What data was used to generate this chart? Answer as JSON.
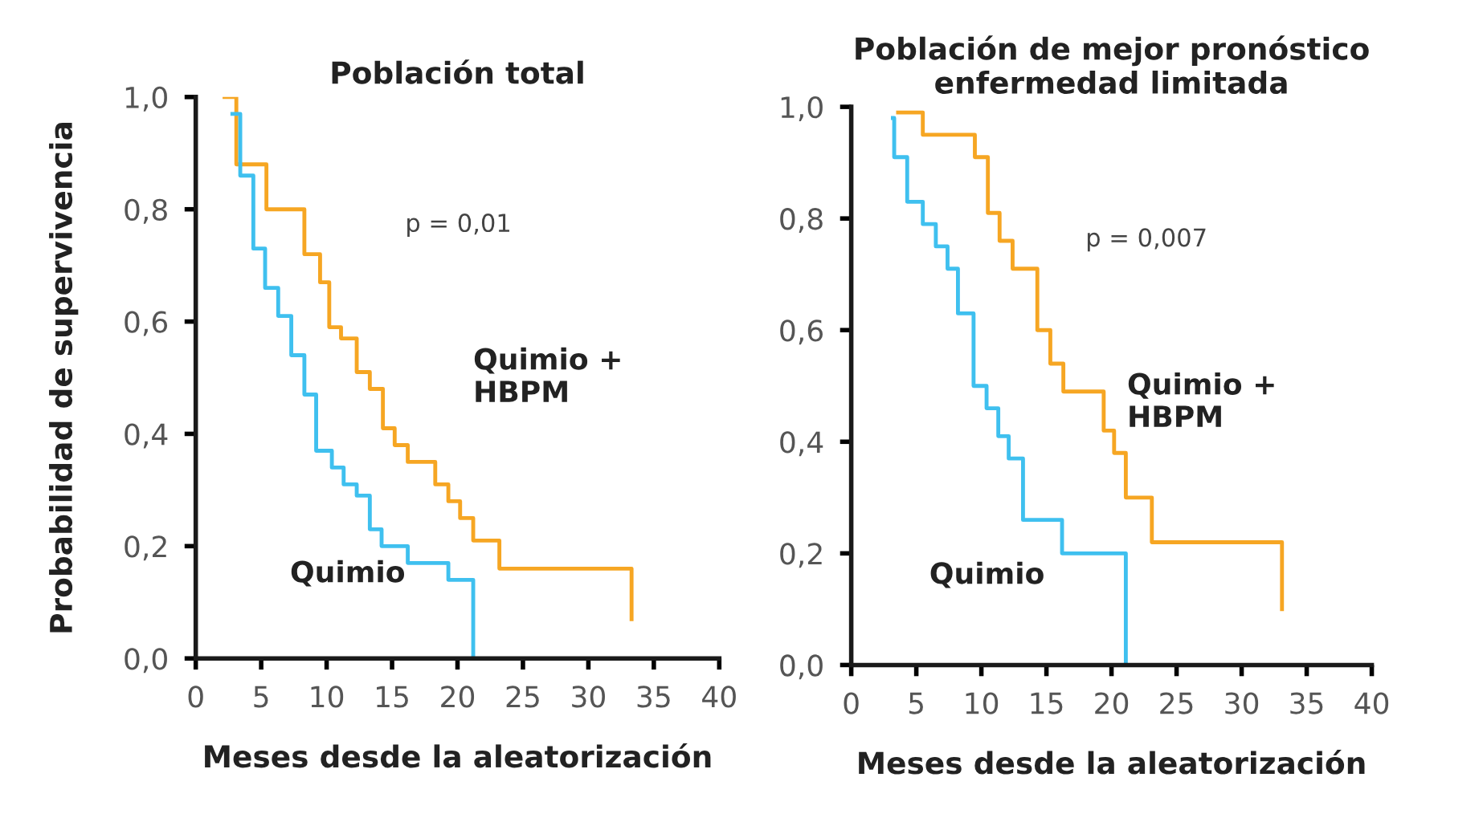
{
  "chart_data": [
    {
      "type": "step",
      "title": "Población total",
      "xlabel": "Meses desde la aleatorización",
      "ylabel": "Probabilidad de supervivencia",
      "xlim": [
        0,
        40
      ],
      "xticks": [
        0,
        5,
        10,
        15,
        20,
        25,
        30,
        35,
        40
      ],
      "ylim": [
        0,
        1.0
      ],
      "yticks": [
        {
          "value": 0,
          "label": "0,0"
        },
        {
          "value": 0.2,
          "label": "0,2"
        },
        {
          "value": 0.4,
          "label": "0,4"
        },
        {
          "value": 0.6,
          "label": "0,6"
        },
        {
          "value": 0.8,
          "label": "0,8"
        },
        {
          "value": 1.0,
          "label": "1,0"
        }
      ],
      "grid": false,
      "legend": false,
      "annotations": [
        "p = 0,01"
      ],
      "series": [
        {
          "name": "Quimio +\nHBPM",
          "color": "#f6a623",
          "x": [
            2.2,
            3.1,
            5.4,
            8.3,
            9.5,
            10.2,
            11.1,
            12.3,
            13.3,
            14.3,
            15.2,
            16.2,
            18.3,
            19.3,
            20.2,
            21.2,
            23.2,
            33.3,
            33.3
          ],
          "values": [
            1.0,
            0.88,
            0.8,
            0.72,
            0.67,
            0.59,
            0.57,
            0.51,
            0.48,
            0.41,
            0.38,
            0.35,
            0.31,
            0.28,
            0.25,
            0.21,
            0.16,
            0.16,
            0.07
          ]
        },
        {
          "name": "Quimio",
          "color": "#3fc0ef",
          "x": [
            2.8,
            3.4,
            4.4,
            5.3,
            6.3,
            7.3,
            8.3,
            9.2,
            10.4,
            11.3,
            12.3,
            13.3,
            14.2,
            16.2,
            19.3,
            21.2,
            21.2
          ],
          "values": [
            0.97,
            0.86,
            0.73,
            0.66,
            0.61,
            0.54,
            0.47,
            0.37,
            0.34,
            0.31,
            0.29,
            0.23,
            0.2,
            0.17,
            0.14,
            0.14,
            0.0
          ]
        }
      ]
    },
    {
      "type": "step",
      "title": "Población de mejor pronóstico\nenfermedad limitada",
      "xlabel": "Meses desde la aleatorización",
      "xlim": [
        0,
        40
      ],
      "xticks": [
        0,
        5,
        10,
        15,
        20,
        25,
        30,
        35,
        40
      ],
      "ylim": [
        0,
        1.0
      ],
      "yticks": [
        {
          "value": 0,
          "label": "0,0"
        },
        {
          "value": 0.2,
          "label": "0,2"
        },
        {
          "value": 0.4,
          "label": "0,4"
        },
        {
          "value": 0.6,
          "label": "0,6"
        },
        {
          "value": 0.8,
          "label": "0,8"
        },
        {
          "value": 1.0,
          "label": "1,0"
        }
      ],
      "grid": false,
      "legend": false,
      "annotations": [
        "p = 0,007"
      ],
      "series": [
        {
          "name": "Quimio +\nHBPM",
          "color": "#f6a623",
          "x": [
            3.6,
            5.5,
            9.5,
            10.5,
            11.4,
            12.4,
            14.3,
            15.3,
            16.3,
            19.4,
            20.2,
            21.1,
            23.1,
            33.1,
            33.1
          ],
          "values": [
            0.99,
            0.95,
            0.91,
            0.81,
            0.76,
            0.71,
            0.6,
            0.54,
            0.49,
            0.42,
            0.38,
            0.3,
            0.22,
            0.22,
            0.1
          ]
        },
        {
          "name": "Quimio",
          "color": "#3fc0ef",
          "x": [
            3.2,
            3.3,
            4.3,
            5.5,
            6.5,
            7.4,
            8.2,
            9.4,
            10.4,
            11.3,
            12.1,
            13.2,
            16.2,
            21.1,
            21.1
          ],
          "values": [
            0.98,
            0.91,
            0.83,
            0.79,
            0.75,
            0.71,
            0.63,
            0.5,
            0.46,
            0.41,
            0.37,
            0.26,
            0.2,
            0.2,
            0.0
          ]
        }
      ]
    }
  ]
}
